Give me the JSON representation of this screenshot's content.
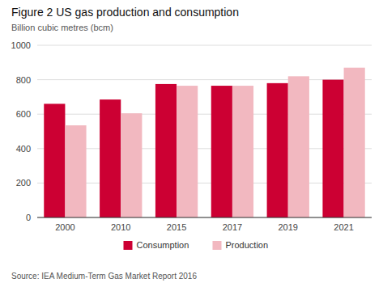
{
  "chart_data": {
    "type": "bar",
    "title": "Figure 2 US gas production and consumption",
    "subtitle": "Billion cubic metres (bcm)",
    "annotations": [
      "Source: IEA Medium-Term Gas Market Report 2016"
    ],
    "categories": [
      "2000",
      "2010",
      "2015",
      "2017",
      "2019",
      "2021"
    ],
    "series": [
      {
        "name": "Consumption",
        "color": "#cc0033",
        "values": [
          660,
          685,
          775,
          765,
          780,
          800
        ]
      },
      {
        "name": "Production",
        "color": "#f2b8c0",
        "values": [
          535,
          605,
          765,
          765,
          820,
          870
        ]
      }
    ],
    "ylim": [
      0,
      1000
    ],
    "yticks": [
      0,
      200,
      400,
      600,
      800,
      1000
    ],
    "grid": true,
    "legend": "bottom"
  }
}
